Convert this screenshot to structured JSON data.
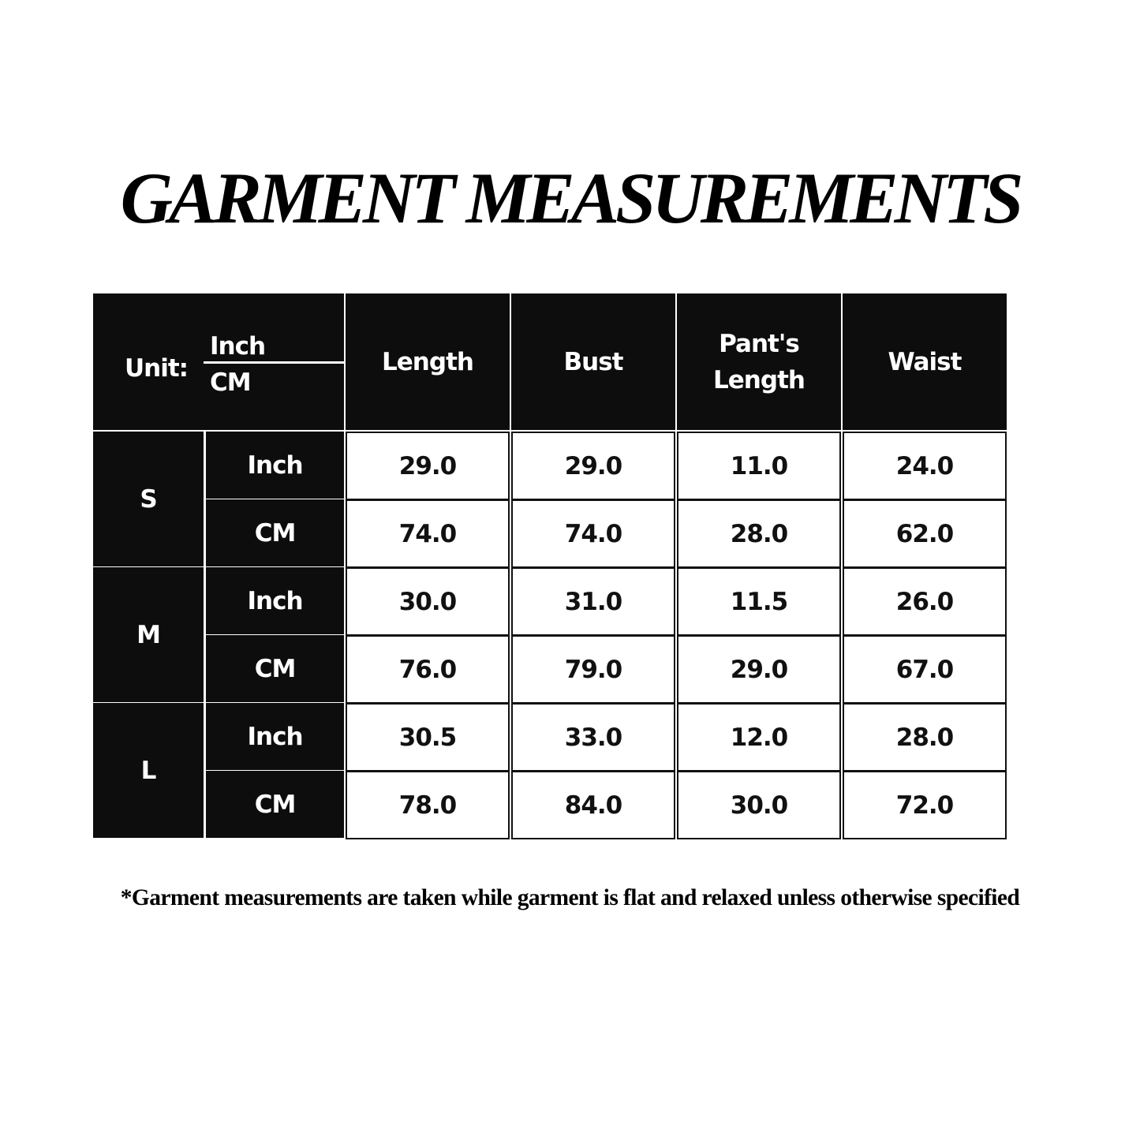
{
  "title": "GARMENT MEASUREMENTS",
  "table": {
    "unit_label": "Unit:",
    "unit_top": "Inch",
    "unit_bottom": "CM",
    "columns": [
      "Length",
      "Bust",
      "Pant's Length",
      "Waist"
    ],
    "sizes": [
      {
        "size": "S",
        "rows": [
          {
            "unit": "Inch",
            "values": [
              "29.0",
              "29.0",
              "11.0",
              "24.0"
            ]
          },
          {
            "unit": "CM",
            "values": [
              "74.0",
              "74.0",
              "28.0",
              "62.0"
            ]
          }
        ]
      },
      {
        "size": "M",
        "rows": [
          {
            "unit": "Inch",
            "values": [
              "30.0",
              "31.0",
              "11.5",
              "26.0"
            ]
          },
          {
            "unit": "CM",
            "values": [
              "76.0",
              "79.0",
              "29.0",
              "67.0"
            ]
          }
        ]
      },
      {
        "size": "L",
        "rows": [
          {
            "unit": "Inch",
            "values": [
              "30.5",
              "33.0",
              "12.0",
              "28.0"
            ]
          },
          {
            "unit": "CM",
            "values": [
              "78.0",
              "84.0",
              "30.0",
              "72.0"
            ]
          }
        ]
      }
    ]
  },
  "note": "*Garment measurements are taken while garment is flat and relaxed unless otherwise specified"
}
